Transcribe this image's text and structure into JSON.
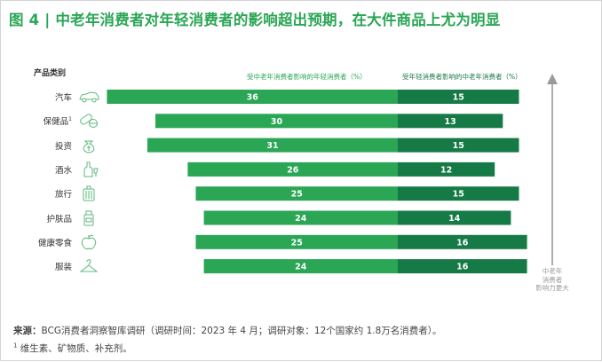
{
  "title": "图 4 | 中老年消费者对年轻消费者的影响超出预期，在大件商品上尤为明显",
  "axis_category_label": "产品类别",
  "legend": {
    "left": "受中老年消费者影响的年轻消费者（%）",
    "right": "受年轻消费者影响的中老年消费者（%）"
  },
  "arrow_note": [
    "中老年",
    "消费者",
    "影响力更大"
  ],
  "source": {
    "prefix": "来源：",
    "text": "BCG消费者洞察智库调研（调研时间：2023 年 4 月；调研对象：12个国家约 1.8万名消费者）。"
  },
  "footnote": {
    "mark": "1",
    "text": " 维生素、矿物质、补充剂。"
  },
  "colors": {
    "title": "#2aa655",
    "left_bar": "#2aa655",
    "right_bar": "#157a45",
    "icon": "#5cb97c"
  },
  "chart_data": {
    "type": "bar",
    "orientation": "horizontal-diverging",
    "categories": [
      "汽车",
      "保健品",
      "投资",
      "酒水",
      "旅行",
      "护肤品",
      "健康零食",
      "服装"
    ],
    "category_footnotes": [
      "",
      "1",
      "",
      "",
      "",
      "",
      "",
      ""
    ],
    "icons": [
      "car-icon",
      "pill-icon",
      "money-bag-icon",
      "wine-bottle-icon",
      "luggage-icon",
      "cosmetic-bottle-icon",
      "apple-icon",
      "hanger-icon"
    ],
    "series": [
      {
        "name": "受中老年消费者影响的年轻消费者（%）",
        "values": [
          36,
          30,
          31,
          26,
          25,
          24,
          25,
          24
        ]
      },
      {
        "name": "受年轻消费者影响的中老年消费者（%）",
        "values": [
          15,
          13,
          15,
          12,
          15,
          14,
          16,
          16
        ]
      }
    ],
    "xlabel": "",
    "ylabel": "产品类别"
  }
}
